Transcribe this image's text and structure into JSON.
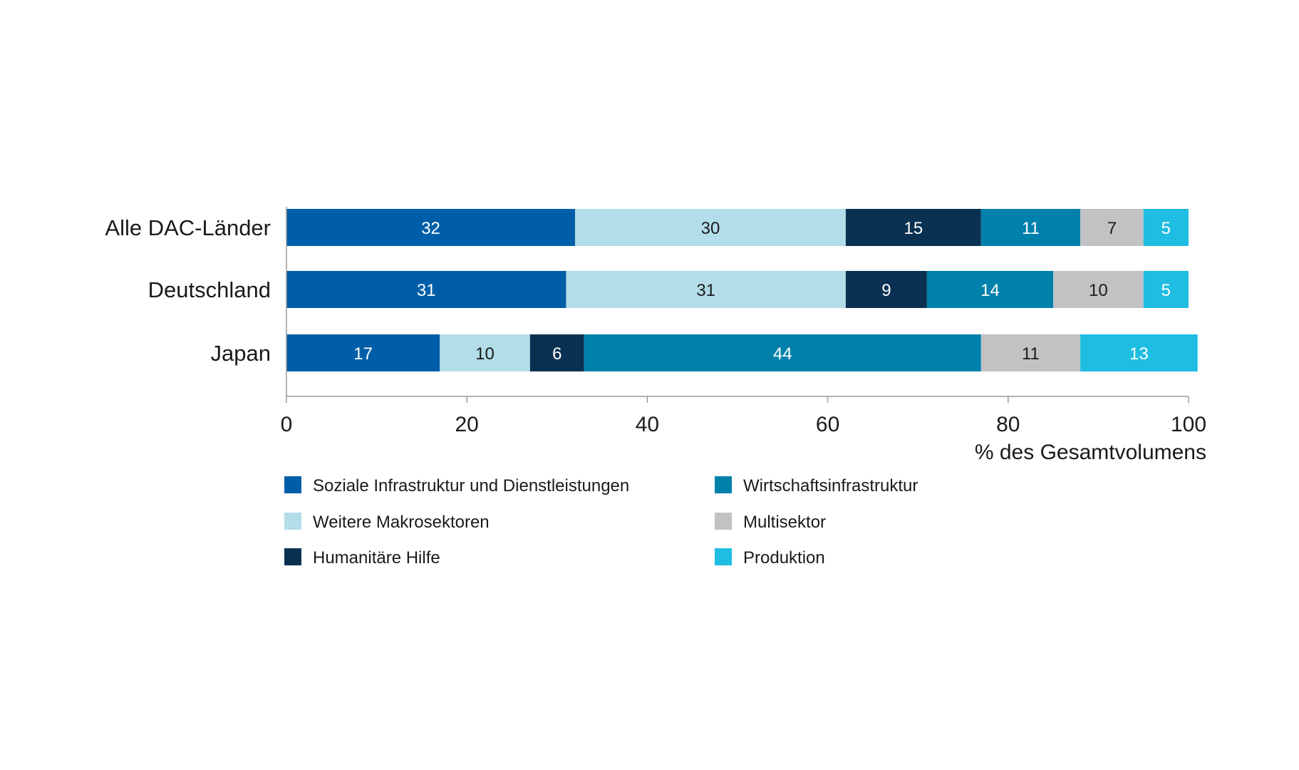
{
  "chart_data": {
    "type": "bar",
    "orientation": "horizontal",
    "stacked": true,
    "categories": [
      "Alle DAC-Länder",
      "Deutschland",
      "Japan"
    ],
    "series": [
      {
        "name": "Soziale Infrastruktur und Dienstleistungen",
        "color": "#005ea8",
        "label_color": "#ffffff",
        "values": [
          32,
          31,
          17
        ]
      },
      {
        "name": "Weitere Makrosektoren",
        "color": "#b2dde9",
        "label_color": "#1a1a1a",
        "values": [
          30,
          31,
          10
        ]
      },
      {
        "name": "Humanitäre Hilfe",
        "color": "#0a3152",
        "label_color": "#ffffff",
        "values": [
          15,
          9,
          6
        ]
      },
      {
        "name": "Wirtschaftsinfrastruktur",
        "color": "#0081ac",
        "label_color": "#ffffff",
        "values": [
          11,
          14,
          44
        ]
      },
      {
        "name": "Multisektor",
        "color": "#c2c2c4",
        "label_color": "#1a1a1a",
        "values": [
          7,
          10,
          11
        ]
      },
      {
        "name": "Produktion",
        "color": "#1ebde1",
        "label_color": "#ffffff",
        "values": [
          5,
          5,
          13
        ]
      }
    ],
    "xlabel": "% des Gesamtvolumens",
    "xlim": [
      0,
      100
    ],
    "xticks": [
      0,
      20,
      40,
      60,
      80,
      100
    ],
    "grid": false,
    "legend_position": "bottom"
  }
}
